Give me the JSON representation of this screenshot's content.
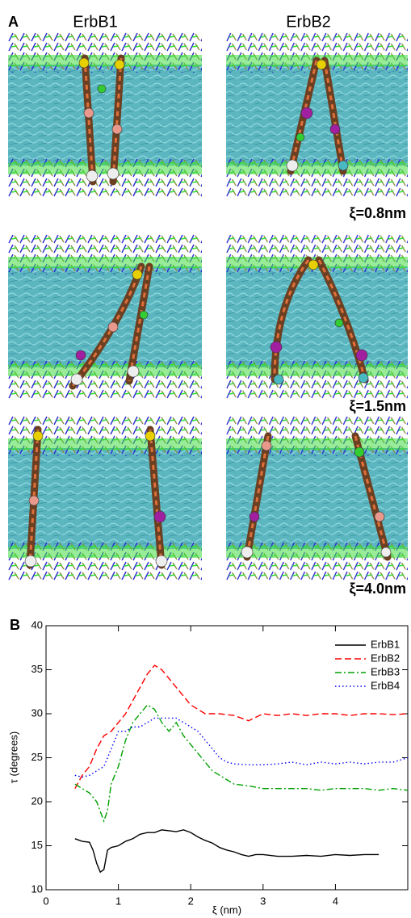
{
  "panel_a": {
    "label": "A",
    "columns": [
      "ErbB1",
      "ErbB2"
    ],
    "rows": [
      "ξ=0.8nm",
      "ξ=1.5nm",
      "ξ=4.0nm"
    ]
  },
  "chart_data": {
    "type": "line",
    "panel_label": "B",
    "x_label": "ξ (nm)",
    "y_label": "τ (degrees)",
    "xlim": [
      0,
      5
    ],
    "xticks": [
      0,
      1,
      2,
      3,
      4
    ],
    "ylim": [
      10,
      40
    ],
    "yticks": [
      10,
      15,
      20,
      25,
      30,
      35,
      40
    ],
    "legend": "upper right",
    "series": [
      {
        "name": "ErbB1",
        "color": "#000000",
        "linestyle": "solid",
        "x": [
          0.4,
          0.5,
          0.6,
          0.65,
          0.7,
          0.75,
          0.8,
          0.85,
          0.9,
          1.0,
          1.1,
          1.2,
          1.3,
          1.4,
          1.5,
          1.6,
          1.7,
          1.8,
          1.9,
          2.0,
          2.1,
          2.2,
          2.3,
          2.4,
          2.5,
          2.6,
          2.7,
          2.8,
          2.9,
          3.0,
          3.2,
          3.4,
          3.6,
          3.8,
          4.0,
          4.2,
          4.4,
          4.6
        ],
        "values": [
          15.8,
          15.5,
          15.4,
          14.5,
          13,
          12,
          12.3,
          14.5,
          14.8,
          15,
          15.5,
          15.8,
          16.3,
          16.5,
          16.5,
          16.8,
          16.7,
          16.6,
          16.8,
          16.5,
          16,
          15.6,
          15.3,
          14.8,
          14.5,
          14.3,
          14,
          13.8,
          14,
          14,
          13.8,
          13.8,
          13.9,
          13.8,
          14,
          13.9,
          14,
          14
        ]
      },
      {
        "name": "ErbB2",
        "color": "#ff0000",
        "linestyle": "dashed",
        "x": [
          0.4,
          0.5,
          0.6,
          0.7,
          0.8,
          0.9,
          1.0,
          1.1,
          1.2,
          1.3,
          1.4,
          1.5,
          1.6,
          1.7,
          1.8,
          1.9,
          2.0,
          2.1,
          2.2,
          2.4,
          2.6,
          2.8,
          3.0,
          3.2,
          3.4,
          3.6,
          3.8,
          4.0,
          4.2,
          4.4,
          4.6,
          4.8,
          5.0
        ],
        "values": [
          21.5,
          23,
          24,
          26,
          27.5,
          28,
          29,
          30,
          31.5,
          33,
          34.5,
          35.5,
          35,
          34,
          33,
          32,
          31,
          30.5,
          30,
          30,
          29.8,
          29.2,
          30,
          29.8,
          30,
          29.8,
          30,
          30,
          29.8,
          30,
          30,
          29.9,
          30
        ]
      },
      {
        "name": "ErbB3",
        "color": "#00a000",
        "linestyle": "dashdot",
        "x": [
          0.4,
          0.5,
          0.6,
          0.7,
          0.8,
          0.85,
          0.9,
          1.0,
          1.1,
          1.2,
          1.3,
          1.4,
          1.5,
          1.6,
          1.7,
          1.8,
          1.9,
          2.0,
          2.1,
          2.2,
          2.3,
          2.4,
          2.5,
          2.6,
          2.8,
          3.0,
          3.2,
          3.4,
          3.6,
          3.8,
          4.0,
          4.2,
          4.4,
          4.6,
          4.8,
          5.0
        ],
        "values": [
          22,
          21.5,
          21,
          20,
          17.8,
          19,
          22,
          24,
          27,
          29,
          30,
          31,
          30.5,
          29,
          28,
          29,
          27.5,
          26.5,
          25.5,
          24.5,
          23.5,
          23,
          22.5,
          22,
          21.8,
          21.5,
          21.5,
          21.5,
          21.5,
          21.3,
          21.5,
          21.5,
          21.5,
          21.3,
          21.5,
          21.3
        ]
      },
      {
        "name": "ErbB4",
        "color": "#0000ff",
        "linestyle": "dotted",
        "x": [
          0.4,
          0.5,
          0.6,
          0.7,
          0.8,
          0.9,
          1.0,
          1.1,
          1.2,
          1.3,
          1.4,
          1.5,
          1.6,
          1.7,
          1.8,
          1.9,
          2.0,
          2.1,
          2.2,
          2.3,
          2.4,
          2.5,
          2.6,
          2.8,
          3.0,
          3.2,
          3.4,
          3.6,
          3.8,
          4.0,
          4.2,
          4.4,
          4.6,
          4.8,
          5.0
        ],
        "values": [
          23,
          22.8,
          23,
          23.5,
          24,
          26,
          28,
          28,
          28.5,
          28.5,
          29,
          29.5,
          29.5,
          29.5,
          29.5,
          29,
          28.5,
          28,
          27,
          26,
          25,
          24.5,
          24.3,
          24.2,
          24.2,
          24.3,
          24.5,
          24.2,
          24.5,
          24.3,
          24.5,
          24.3,
          24.5,
          24.5,
          25
        ]
      }
    ]
  }
}
